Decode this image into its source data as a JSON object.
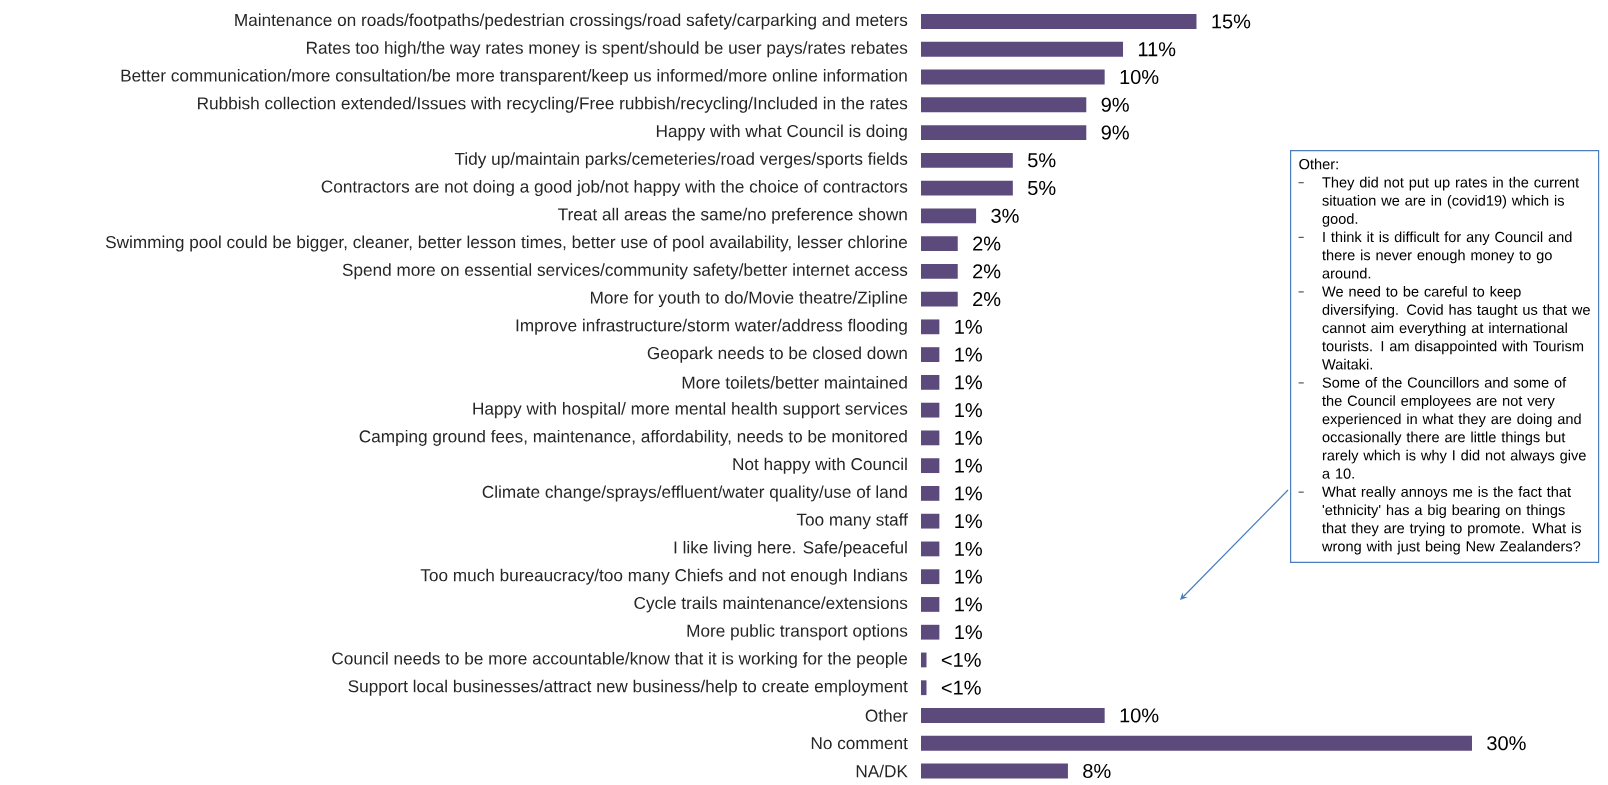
{
  "chart_data": {
    "type": "bar",
    "orientation": "horizontal",
    "color": "#5c4a7c",
    "categories": [
      "Maintenance on roads/footpaths/pedestrian crossings/road safety/carparking and meters",
      "Rates too high/the way rates money is spent/should be user pays/rates rebates",
      "Better communication/more consultation/be more transparent/keep us informed/more online information",
      "Rubbish collection extended/Issues with recycling/Free rubbish/recycling/Included in the rates",
      "Happy with what Council is doing",
      "Tidy up/maintain parks/cemeteries/road verges/sports fields",
      "Contractors are not doing a good job/not happy with the choice of contractors",
      "Treat all areas the same/no preference shown",
      "Swimming pool could be bigger, cleaner, better lesson times, better use of pool availability, lesser chlorine",
      "Spend more on essential services/community safety/better internet access",
      "More for youth to do/Movie theatre/Zipline",
      "Improve infrastructure/storm water/address flooding",
      "Geopark needs to be closed down",
      "More toilets/better maintained",
      "Happy with hospital/ more mental health support services",
      "Camping ground fees, maintenance, affordability, needs to be monitored",
      "Not happy with Council",
      "Climate change/sprays/effluent/water quality/use of land",
      "Too many staff",
      "I like living here. Safe/peaceful",
      "Too much bureaucracy/too many Chiefs and not enough Indians",
      "Cycle trails maintenance/extensions",
      "More public transport options",
      "Council needs to be more accountable/know that it is working for the people",
      "Support local businesses/attract new business/help to create employment",
      "Other",
      "No comment",
      "NA/DK"
    ],
    "values": [
      15,
      11,
      10,
      9,
      9,
      5,
      5,
      3,
      2,
      2,
      2,
      1,
      1,
      1,
      1,
      1,
      1,
      1,
      1,
      1,
      1,
      1,
      1,
      0.3,
      0.3,
      10,
      30,
      8
    ],
    "value_labels": [
      "15%",
      "11%",
      "10%",
      "9%",
      "9%",
      "5%",
      "5%",
      "3%",
      "2%",
      "2%",
      "2%",
      "1%",
      "1%",
      "1%",
      "1%",
      "1%",
      "1%",
      "1%",
      "1%",
      "1%",
      "1%",
      "1%",
      "1%",
      "<1%",
      "<1%",
      "10%",
      "30%",
      "8%"
    ],
    "annotations": [
      "Other:",
      "They did not put up rates in the current situation we are in (covid19) which is good.",
      "I think it is difficult for any Council and there is never enough money to go around.",
      "We need to be careful to keep diversifying. Covid has taught us that we cannot aim everything at international tourists. I am disappointed with Tourism Waitaki.",
      "Some of the Councillors and some of the Council employees are not very experienced in what they are doing and occasionally there are little things but rarely which is why I did not always give a 10.",
      "What really annoys me is the fact that 'ethnicity' has a big bearing on things that they are trying to promote. What is wrong with just being New Zealanders?"
    ]
  }
}
